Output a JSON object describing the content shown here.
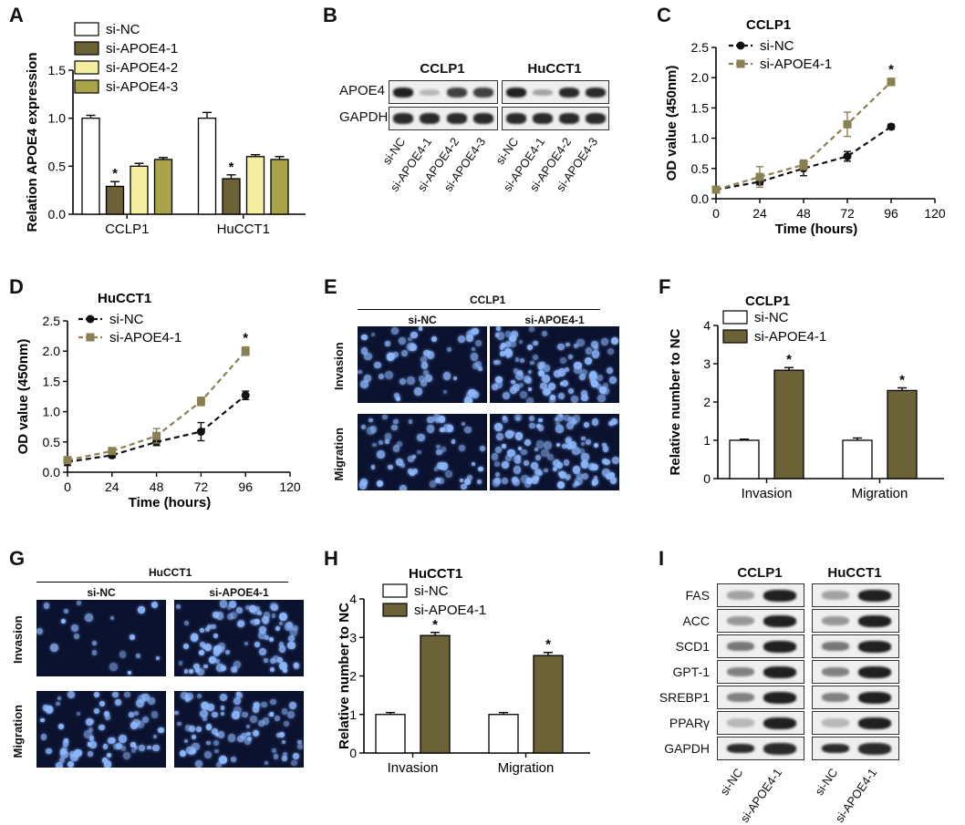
{
  "colors": {
    "si_nc": "#ffffff",
    "si_apoe4_1": "#6b6237",
    "si_apoe4_2": "#f4efa0",
    "si_apoe4_3": "#a9a34a",
    "line_nc": "#111111",
    "line_si": "#8a8152",
    "band": "#1a1a1a",
    "micro_bg": "#0b1230",
    "cell": "#8fb9ff"
  },
  "panels": {
    "A": {
      "label": "A",
      "legend": [
        "si-NC",
        "si-APOE4-1",
        "si-APOE4-2",
        "si-APOE4-3"
      ]
    },
    "B": {
      "label": "B",
      "cell_lines": [
        "CCLP1",
        "HuCCT1"
      ],
      "rows": [
        "APOE4",
        "GAPDH"
      ],
      "lanes": [
        "si-NC",
        "si-APOE4-1",
        "si-APOE4-2",
        "si-APOE4-3",
        "si-NC",
        "si-APOE4-1",
        "si-APOE4-2",
        "si-APOE4-3"
      ]
    },
    "C": {
      "label": "C"
    },
    "D": {
      "label": "D"
    },
    "E": {
      "label": "E",
      "title": "CCLP1",
      "cols": [
        "si-NC",
        "si-APOE4-1"
      ],
      "rows": [
        "Invasion",
        "Migration"
      ]
    },
    "F": {
      "label": "F"
    },
    "G": {
      "label": "G",
      "title": "HuCCT1",
      "cols": [
        "si-NC",
        "si-APOE4-1"
      ],
      "rows": [
        "Invasion",
        "Migration"
      ]
    },
    "H": {
      "label": "H"
    },
    "I": {
      "label": "I",
      "cell_lines": [
        "CCLP1",
        "HuCCT1"
      ],
      "rows": [
        "FAS",
        "ACC",
        "SCD1",
        "GPT-1",
        "SREBP1",
        "PPARγ",
        "GAPDH"
      ],
      "lanes": [
        "si-NC",
        "si-APOE4-1",
        "si-NC",
        "si-APOE4-1"
      ]
    }
  },
  "chart_data": [
    {
      "id": "A",
      "type": "bar",
      "categories": [
        "CCLP1",
        "HuCCT1"
      ],
      "series": [
        {
          "name": "si-NC",
          "values": [
            1.0,
            1.0
          ],
          "errors": [
            0.03,
            0.06
          ]
        },
        {
          "name": "si-APOE4-1",
          "values": [
            0.29,
            0.37
          ],
          "errors": [
            0.05,
            0.04
          ]
        },
        {
          "name": "si-APOE4-2",
          "values": [
            0.5,
            0.6
          ],
          "errors": [
            0.03,
            0.02
          ]
        },
        {
          "name": "si-APOE4-3",
          "values": [
            0.57,
            0.57
          ],
          "errors": [
            0.02,
            0.03
          ]
        }
      ],
      "ylabel": "Relation APOE4 expression",
      "ylim": [
        0,
        1.5
      ],
      "yticks": [
        "0.0",
        "0.5",
        "1.0",
        "1.5"
      ],
      "star_labels": [
        "*",
        "*"
      ]
    },
    {
      "id": "C",
      "type": "line",
      "title": "CCLP1",
      "x": [
        0,
        24,
        48,
        72,
        96
      ],
      "series": [
        {
          "name": "si-NC",
          "values": [
            0.15,
            0.28,
            0.5,
            0.7,
            1.19
          ],
          "errors": [
            0.02,
            0.05,
            0.12,
            0.08,
            0.04
          ]
        },
        {
          "name": "si-APOE4-1",
          "values": [
            0.15,
            0.36,
            0.56,
            1.23,
            1.93
          ],
          "errors": [
            0.02,
            0.17,
            0.08,
            0.2,
            0.06
          ]
        }
      ],
      "xlabel": "Time (hours)",
      "ylabel": "OD value (450nm)",
      "xlim": [
        0,
        120
      ],
      "ylim": [
        0,
        2.5
      ],
      "xticks": [
        "0",
        "24",
        "48",
        "72",
        "96",
        "120"
      ],
      "yticks": [
        "0.0",
        "0.5",
        "1.0",
        "1.5",
        "2.0",
        "2.5"
      ],
      "star": "*"
    },
    {
      "id": "D",
      "type": "line",
      "title": "HuCCT1",
      "x": [
        0,
        24,
        48,
        72,
        96
      ],
      "series": [
        {
          "name": "si-NC",
          "values": [
            0.17,
            0.28,
            0.5,
            0.67,
            1.27
          ],
          "errors": [
            0.06,
            0.04,
            0.06,
            0.15,
            0.07
          ]
        },
        {
          "name": "si-APOE4-1",
          "values": [
            0.2,
            0.35,
            0.6,
            1.17,
            2.0
          ],
          "errors": [
            0.03,
            0.03,
            0.12,
            0.07,
            0.07
          ]
        }
      ],
      "xlabel": "Time (hours)",
      "ylabel": "OD value (450nm)",
      "xlim": [
        0,
        120
      ],
      "ylim": [
        0,
        2.5
      ],
      "xticks": [
        "0",
        "24",
        "48",
        "72",
        "96",
        "120"
      ],
      "yticks": [
        "0.0",
        "0.5",
        "1.0",
        "1.5",
        "2.0",
        "2.5"
      ],
      "star": "*"
    },
    {
      "id": "F",
      "type": "bar",
      "title": "CCLP1",
      "categories": [
        "Invasion",
        "Migration"
      ],
      "series": [
        {
          "name": "si-NC",
          "values": [
            1.0,
            1.0
          ],
          "errors": [
            0.03,
            0.06
          ]
        },
        {
          "name": "si-APOE4-1",
          "values": [
            2.83,
            2.3
          ],
          "errors": [
            0.07,
            0.07
          ]
        }
      ],
      "ylabel": "Relative number to NC",
      "ylim": [
        0,
        4
      ],
      "yticks": [
        "0",
        "1",
        "2",
        "3",
        "4"
      ],
      "star_labels": [
        "*",
        "*"
      ]
    },
    {
      "id": "H",
      "type": "bar",
      "title": "HuCCT1",
      "categories": [
        "Invasion",
        "Migration"
      ],
      "series": [
        {
          "name": "si-NC",
          "values": [
            1.0,
            1.0
          ],
          "errors": [
            0.05,
            0.05
          ]
        },
        {
          "name": "si-APOE4-1",
          "values": [
            3.05,
            2.53
          ],
          "errors": [
            0.08,
            0.08
          ]
        }
      ],
      "ylabel": "Relative number to NC",
      "ylim": [
        0,
        4
      ],
      "yticks": [
        "0",
        "1",
        "2",
        "3",
        "4"
      ],
      "star_labels": [
        "*",
        "*"
      ]
    }
  ]
}
